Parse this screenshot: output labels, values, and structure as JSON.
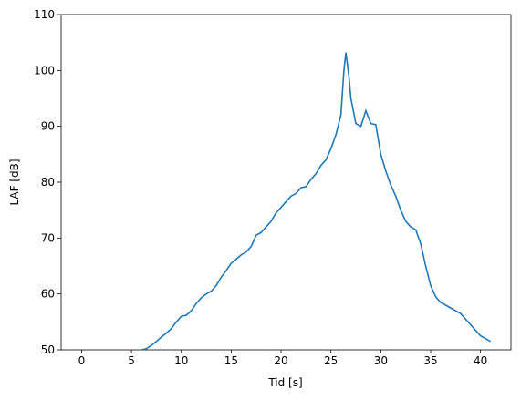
{
  "chart_data": {
    "type": "line",
    "xlabel": "Tid [s]",
    "ylabel": "LAF [dB]",
    "x": [
      5.5,
      6,
      6.5,
      7,
      7.5,
      8,
      8.5,
      9,
      9.5,
      10,
      10.5,
      11,
      11.5,
      12,
      12.5,
      13,
      13.5,
      14,
      14.5,
      15,
      15.5,
      16,
      16.5,
      17,
      17.5,
      18,
      18.5,
      19,
      19.5,
      20,
      20.5,
      21,
      21.5,
      22,
      22.5,
      23,
      23.5,
      24,
      24.5,
      25,
      25.5,
      26,
      26.3,
      26.5,
      26.8,
      27,
      27.5,
      28,
      28.5,
      29,
      29.5,
      30,
      30.5,
      31,
      31.5,
      32,
      32.5,
      33,
      33.5,
      34,
      34.5,
      35,
      35.5,
      36,
      36.5,
      37,
      37.5,
      38,
      38.5,
      39,
      39.5,
      40,
      40.5,
      41
    ],
    "series": [
      {
        "color": "#1f77b4",
        "values": [
          49.6,
          50.0,
          50.2,
          50.8,
          51.5,
          52.3,
          53,
          53.8,
          55,
          56,
          56.2,
          57,
          58.3,
          59.3,
          60,
          60.5,
          61.5,
          63,
          64.2,
          65.5,
          66.2,
          67,
          67.5,
          68.5,
          70.5,
          71,
          72,
          73,
          74.5,
          75.5,
          76.5,
          77.5,
          78,
          79,
          79.2,
          80.5,
          81.5,
          83,
          84,
          86,
          88.5,
          92,
          100,
          103.2,
          99,
          95,
          90.5,
          90,
          92.8,
          90.5,
          90.3,
          85,
          82,
          79.5,
          77.5,
          75,
          73,
          72,
          71.5,
          69,
          65,
          61.5,
          59.5,
          58.5,
          58,
          57.5,
          57,
          56.5,
          55.5,
          54.5,
          53.5,
          52.5,
          52,
          51.5
        ]
      }
    ],
    "xlim": [
      -2.05,
      43.05
    ],
    "xticks": [
      0,
      5,
      10,
      15,
      20,
      25,
      30,
      35,
      40
    ],
    "ylim": [
      50,
      110
    ],
    "yticks": [
      50,
      60,
      70,
      80,
      90,
      100,
      110
    ]
  }
}
